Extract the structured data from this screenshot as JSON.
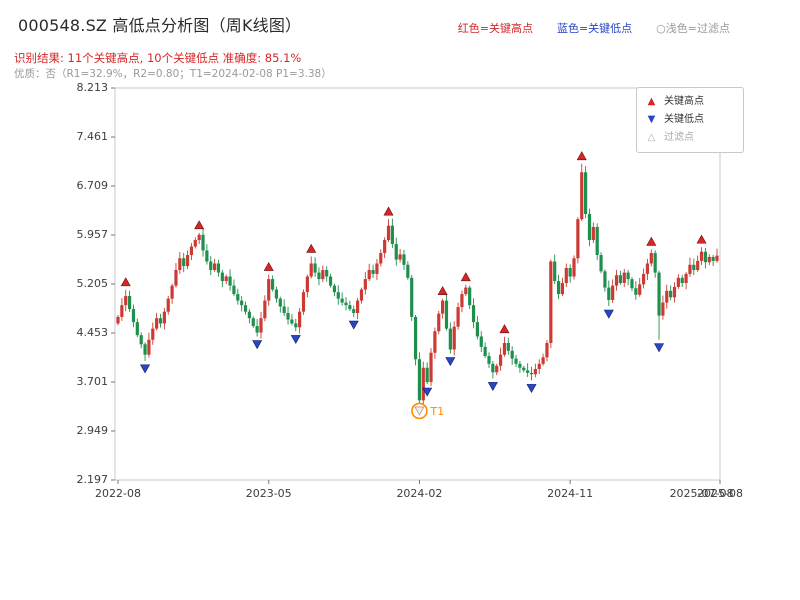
{
  "header": {
    "title": "000548.SZ 高低点分析图（周K线图）",
    "result_line": "识别结果: 11个关键高点, 10个关键低点  准确度: 85.1%",
    "result_color": "#d62728",
    "quality_line": "优质：否（R1=32.9%，R2=0.80；T1=2024-02-08 P1=3.38）",
    "quality_color": "#9a9a9a",
    "legend_top": {
      "high_label": "红色=关键高点",
      "high_color": "#d62728",
      "low_label": "蓝色=关键低点",
      "low_color": "#2a46c5",
      "filter_label": "○浅色=过滤点",
      "filter_color": "#999999"
    }
  },
  "legend_box": {
    "items": [
      {
        "glyph": "▲",
        "glyph_color": "#d62728",
        "label": "关键高点",
        "label_color": "#333333"
      },
      {
        "glyph": "▼",
        "glyph_color": "#2a46c5",
        "label": "关键低点",
        "label_color": "#333333"
      },
      {
        "glyph": "△",
        "glyph_color": "#b9b0a0",
        "label": "过滤点",
        "label_color": "#aaaaaa"
      }
    ]
  },
  "annotation": {
    "label": "T1",
    "color": "#ff8c00"
  },
  "chart_data": {
    "type": "candlestick",
    "title": "000548.SZ 高低点分析图（周K线图）",
    "ylim": [
      2.197,
      8.213
    ],
    "y_ticks": [
      8.213,
      7.461,
      6.709,
      5.957,
      5.205,
      4.453,
      3.701,
      2.949,
      2.197
    ],
    "x_ticks": [
      {
        "pos": 0,
        "label": "2022-08",
        "tick": true
      },
      {
        "pos": 39,
        "label": "2023-05",
        "tick": true
      },
      {
        "pos": 78,
        "label": "2024-02",
        "tick": true
      },
      {
        "pos": 117,
        "label": "2024-11",
        "tick": true
      },
      {
        "pos": 151,
        "label": "2025-07-08",
        "tick": false
      },
      {
        "pos": 156,
        "label": "2025-08",
        "tick": true
      }
    ],
    "open_first": 4.6,
    "closes": [
      4.7,
      4.88,
      5.02,
      4.82,
      4.62,
      4.42,
      4.28,
      4.12,
      4.35,
      4.52,
      4.68,
      4.6,
      4.78,
      4.98,
      5.18,
      5.42,
      5.6,
      5.48,
      5.65,
      5.78,
      5.88,
      5.96,
      5.72,
      5.55,
      5.42,
      5.52,
      5.38,
      5.25,
      5.32,
      5.18,
      5.05,
      4.95,
      4.88,
      4.78,
      4.68,
      4.56,
      4.46,
      4.68,
      4.95,
      5.28,
      5.12,
      4.98,
      4.86,
      4.76,
      4.66,
      4.6,
      4.54,
      4.78,
      5.08,
      5.32,
      5.52,
      5.38,
      5.28,
      5.42,
      5.32,
      5.18,
      5.08,
      4.98,
      4.92,
      4.88,
      4.82,
      4.76,
      4.95,
      5.12,
      5.28,
      5.42,
      5.36,
      5.52,
      5.68,
      5.88,
      6.1,
      5.82,
      5.58,
      5.66,
      5.5,
      5.3,
      4.7,
      4.05,
      3.42,
      3.92,
      3.7,
      4.15,
      4.48,
      4.75,
      4.95,
      4.52,
      4.2,
      4.55,
      4.85,
      5.05,
      5.15,
      4.88,
      4.62,
      4.4,
      4.24,
      4.1,
      3.98,
      3.85,
      3.95,
      4.12,
      4.3,
      4.18,
      4.06,
      3.98,
      3.92,
      3.88,
      3.84,
      3.82,
      3.9,
      3.98,
      4.08,
      4.3,
      5.55,
      5.25,
      5.05,
      5.22,
      5.45,
      5.32,
      5.6,
      6.2,
      6.92,
      6.28,
      5.88,
      6.08,
      5.65,
      5.4,
      5.15,
      4.96,
      5.18,
      5.34,
      5.22,
      5.38,
      5.28,
      5.14,
      5.04,
      5.2,
      5.36,
      5.52,
      5.68,
      5.38,
      4.72,
      4.92,
      5.1,
      5.0,
      5.16,
      5.3,
      5.22,
      5.36,
      5.5,
      5.42,
      5.56,
      5.7,
      5.54,
      5.62,
      5.56,
      5.64
    ],
    "overrides": {
      "70": {
        "high": 6.2
      },
      "78": {
        "low": 3.38
      },
      "112": {
        "low": 4.22
      },
      "120": {
        "high": 7.05
      },
      "140": {
        "low": 4.35
      }
    },
    "key_high_weeks": [
      2,
      21,
      39,
      50,
      70,
      84,
      90,
      100,
      120,
      138,
      151
    ],
    "key_low_weeks": [
      7,
      36,
      46,
      61,
      80,
      86,
      97,
      107,
      127,
      140
    ],
    "filtered_week": 78,
    "t1_price": 3.38,
    "t1_date": "2024-02-08",
    "colors": {
      "up": "#cc3a33",
      "down": "#1f8f4d",
      "key_high": "#d62728",
      "key_low": "#2a46c5",
      "filtered_fill": "#f2ece0",
      "filtered_edge": "#a89f8d",
      "annotation": "#ff8c00"
    }
  }
}
